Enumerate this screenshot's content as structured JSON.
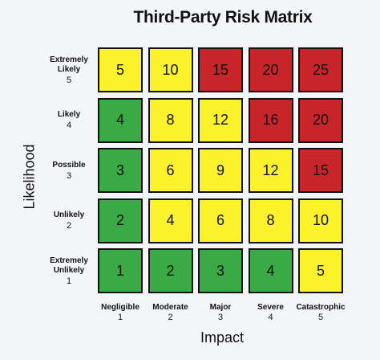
{
  "title": "Third-Party Risk Matrix",
  "y_axis_title": "Likelihood",
  "x_axis_title": "Impact",
  "colors": {
    "green": "#3aaa45",
    "yellow": "#fbf22c",
    "red": "#c8252b"
  },
  "rows": [
    {
      "lines": [
        "Extremely",
        "Likely"
      ],
      "num": "5",
      "cells": [
        {
          "value": "5",
          "color": "yellow"
        },
        {
          "value": "10",
          "color": "yellow"
        },
        {
          "value": "15",
          "color": "red"
        },
        {
          "value": "20",
          "color": "red"
        },
        {
          "value": "25",
          "color": "red"
        }
      ]
    },
    {
      "lines": [
        "Likely"
      ],
      "num": "4",
      "cells": [
        {
          "value": "4",
          "color": "green"
        },
        {
          "value": "8",
          "color": "yellow"
        },
        {
          "value": "12",
          "color": "yellow"
        },
        {
          "value": "16",
          "color": "red"
        },
        {
          "value": "20",
          "color": "red"
        }
      ]
    },
    {
      "lines": [
        "Possible"
      ],
      "num": "3",
      "cells": [
        {
          "value": "3",
          "color": "green"
        },
        {
          "value": "6",
          "color": "yellow"
        },
        {
          "value": "9",
          "color": "yellow"
        },
        {
          "value": "12",
          "color": "yellow"
        },
        {
          "value": "15",
          "color": "red"
        }
      ]
    },
    {
      "lines": [
        "Unlikely"
      ],
      "num": "2",
      "cells": [
        {
          "value": "2",
          "color": "green"
        },
        {
          "value": "4",
          "color": "yellow"
        },
        {
          "value": "6",
          "color": "yellow"
        },
        {
          "value": "8",
          "color": "yellow"
        },
        {
          "value": "10",
          "color": "yellow"
        }
      ]
    },
    {
      "lines": [
        "Extremely",
        "Unlikely"
      ],
      "num": "1",
      "cells": [
        {
          "value": "1",
          "color": "green"
        },
        {
          "value": "2",
          "color": "green"
        },
        {
          "value": "3",
          "color": "green"
        },
        {
          "value": "4",
          "color": "green"
        },
        {
          "value": "5",
          "color": "yellow"
        }
      ]
    }
  ],
  "columns": [
    {
      "label": "Negligible",
      "num": "1"
    },
    {
      "label": "Moderate",
      "num": "2"
    },
    {
      "label": "Major",
      "num": "3"
    },
    {
      "label": "Severe",
      "num": "4"
    },
    {
      "label": "Catastrophic",
      "num": "5"
    }
  ]
}
